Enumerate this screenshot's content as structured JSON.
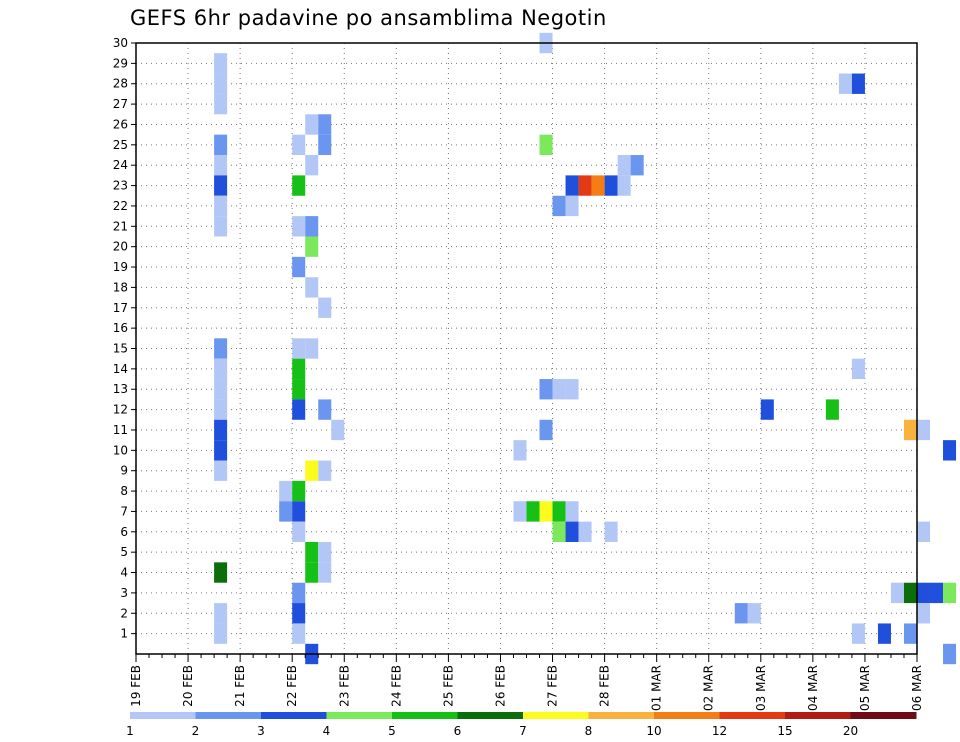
{
  "chart_data": {
    "type": "heatmap",
    "title": "GEFS 6hr padavine po ansamblima Negotin",
    "y_ticks": [
      1,
      2,
      3,
      4,
      5,
      6,
      7,
      8,
      9,
      10,
      11,
      12,
      13,
      14,
      15,
      16,
      17,
      18,
      19,
      20,
      21,
      22,
      23,
      24,
      25,
      26,
      27,
      28,
      29,
      30
    ],
    "x_ticks": [
      "19 FEB",
      "20 FEB",
      "21 FEB",
      "22 FEB",
      "23 FEB",
      "24 FEB",
      "25 FEB",
      "26 FEB",
      "27 FEB",
      "28 FEB",
      "01 MAR",
      "02 MAR",
      "03 MAR",
      "04 MAR",
      "05 MAR",
      "06 MAR"
    ],
    "xlim_days": [
      0,
      15
    ],
    "ylim": [
      0,
      30
    ],
    "legend": {
      "labels": [
        "1",
        "2",
        "3",
        "4",
        "5",
        "6",
        "7",
        "8",
        "10",
        "12",
        "15",
        "20"
      ],
      "colors": [
        "#b3c7f7",
        "#6a96f0",
        "#1f4fdb",
        "#7ce85c",
        "#17c017",
        "#0b6e0b",
        "#fbfb1e",
        "#fbb13d",
        "#f57d17",
        "#e33a14",
        "#b31a14",
        "#6e0b14"
      ]
    },
    "cells": [
      {
        "member": 29,
        "day": 1.5,
        "value": 1
      },
      {
        "member": 28,
        "day": 1.5,
        "value": 1
      },
      {
        "member": 27,
        "day": 1.5,
        "value": 1
      },
      {
        "member": 25,
        "day": 1.5,
        "value": 2
      },
      {
        "member": 24,
        "day": 1.5,
        "value": 1
      },
      {
        "member": 23,
        "day": 1.5,
        "value": 3
      },
      {
        "member": 22,
        "day": 1.5,
        "value": 1
      },
      {
        "member": 21,
        "day": 1.5,
        "value": 1
      },
      {
        "member": 15,
        "day": 1.5,
        "value": 2
      },
      {
        "member": 14,
        "day": 1.5,
        "value": 1
      },
      {
        "member": 13,
        "day": 1.5,
        "value": 1
      },
      {
        "member": 12,
        "day": 1.5,
        "value": 1
      },
      {
        "member": 11,
        "day": 1.5,
        "value": 3
      },
      {
        "member": 10,
        "day": 1.5,
        "value": 3
      },
      {
        "member": 9,
        "day": 1.5,
        "value": 1
      },
      {
        "member": 4,
        "day": 1.5,
        "value": 6
      },
      {
        "member": 2,
        "day": 1.5,
        "value": 1
      },
      {
        "member": 1,
        "day": 1.5,
        "value": 1
      },
      {
        "member": 8,
        "day": 2.75,
        "value": 1
      },
      {
        "member": 7,
        "day": 2.75,
        "value": 2
      },
      {
        "member": 25,
        "day": 3,
        "value": 1
      },
      {
        "member": 23,
        "day": 3,
        "value": 5
      },
      {
        "member": 21,
        "day": 3,
        "value": 1
      },
      {
        "member": 19,
        "day": 3,
        "value": 2
      },
      {
        "member": 15,
        "day": 3,
        "value": 1
      },
      {
        "member": 14,
        "day": 3,
        "value": 5
      },
      {
        "member": 13,
        "day": 3,
        "value": 5
      },
      {
        "member": 12,
        "day": 3,
        "value": 3
      },
      {
        "member": 8,
        "day": 3,
        "value": 5
      },
      {
        "member": 7,
        "day": 3,
        "value": 3
      },
      {
        "member": 6,
        "day": 3,
        "value": 1
      },
      {
        "member": 3,
        "day": 3,
        "value": 2
      },
      {
        "member": 2,
        "day": 3,
        "value": 3
      },
      {
        "member": 1,
        "day": 3,
        "value": 1
      },
      {
        "member": 26,
        "day": 3.25,
        "value": 1
      },
      {
        "member": 24,
        "day": 3.25,
        "value": 1
      },
      {
        "member": 21,
        "day": 3.25,
        "value": 2
      },
      {
        "member": 20,
        "day": 3.25,
        "value": 4
      },
      {
        "member": 18,
        "day": 3.25,
        "value": 1
      },
      {
        "member": 15,
        "day": 3.25,
        "value": 1
      },
      {
        "member": 9,
        "day": 3.25,
        "value": 7
      },
      {
        "member": 5,
        "day": 3.25,
        "value": 5
      },
      {
        "member": 4,
        "day": 3.25,
        "value": 5
      },
      {
        "member": 0,
        "day": 3.25,
        "value": 3
      },
      {
        "member": 26,
        "day": 3.5,
        "value": 2
      },
      {
        "member": 25,
        "day": 3.5,
        "value": 2
      },
      {
        "member": 17,
        "day": 3.5,
        "value": 1
      },
      {
        "member": 12,
        "day": 3.5,
        "value": 2
      },
      {
        "member": 9,
        "day": 3.5,
        "value": 1
      },
      {
        "member": 5,
        "day": 3.5,
        "value": 1
      },
      {
        "member": 4,
        "day": 3.5,
        "value": 1
      },
      {
        "member": 11,
        "day": 3.75,
        "value": 1
      },
      {
        "member": 10,
        "day": 7.25,
        "value": 1
      },
      {
        "member": 7,
        "day": 7.25,
        "value": 1
      },
      {
        "member": 7,
        "day": 7.5,
        "value": 5
      },
      {
        "member": 30,
        "day": 7.75,
        "value": 1
      },
      {
        "member": 25,
        "day": 7.75,
        "value": 4
      },
      {
        "member": 13,
        "day": 7.75,
        "value": 2
      },
      {
        "member": 11,
        "day": 7.75,
        "value": 2
      },
      {
        "member": 7,
        "day": 7.75,
        "value": 7
      },
      {
        "member": 22,
        "day": 8,
        "value": 2
      },
      {
        "member": 13,
        "day": 8,
        "value": 1
      },
      {
        "member": 7,
        "day": 8,
        "value": 5
      },
      {
        "member": 6,
        "day": 8,
        "value": 4
      },
      {
        "member": 23,
        "day": 8.25,
        "value": 3
      },
      {
        "member": 22,
        "day": 8.25,
        "value": 1
      },
      {
        "member": 13,
        "day": 8.25,
        "value": 1
      },
      {
        "member": 7,
        "day": 8.25,
        "value": 1
      },
      {
        "member": 6,
        "day": 8.25,
        "value": 3
      },
      {
        "member": 23,
        "day": 8.5,
        "value": 12
      },
      {
        "member": 6,
        "day": 8.5,
        "value": 1
      },
      {
        "member": 23,
        "day": 8.75,
        "value": 10
      },
      {
        "member": 23,
        "day": 9,
        "value": 3
      },
      {
        "member": 6,
        "day": 9,
        "value": 1
      },
      {
        "member": 24,
        "day": 9.25,
        "value": 1
      },
      {
        "member": 23,
        "day": 9.25,
        "value": 1
      },
      {
        "member": 24,
        "day": 9.5,
        "value": 2
      },
      {
        "member": 2,
        "day": 11.5,
        "value": 2
      },
      {
        "member": 2,
        "day": 11.75,
        "value": 1
      },
      {
        "member": 12,
        "day": 12,
        "value": 3
      },
      {
        "member": 12,
        "day": 13.25,
        "value": 5
      },
      {
        "member": 28,
        "day": 13.5,
        "value": 1
      },
      {
        "member": 28,
        "day": 13.75,
        "value": 3
      },
      {
        "member": 14,
        "day": 13.75,
        "value": 1
      },
      {
        "member": 1,
        "day": 13.75,
        "value": 1
      },
      {
        "member": 1,
        "day": 14.25,
        "value": 3
      },
      {
        "member": 3,
        "day": 14.5,
        "value": 1
      },
      {
        "member": 11,
        "day": 14.75,
        "value": 8
      },
      {
        "member": 3,
        "day": 14.75,
        "value": 6
      },
      {
        "member": 1,
        "day": 14.75,
        "value": 2
      },
      {
        "member": 11,
        "day": 15,
        "value": 1
      },
      {
        "member": 6,
        "day": 15,
        "value": 1
      },
      {
        "member": 3,
        "day": 15,
        "value": 3
      },
      {
        "member": 2,
        "day": 15,
        "value": 1
      },
      {
        "member": 3,
        "day": 15.25,
        "value": 3
      },
      {
        "member": 10,
        "day": 15.5,
        "value": 3
      },
      {
        "member": 3,
        "day": 15.5,
        "value": 4
      },
      {
        "member": 0,
        "day": 15.5,
        "value": 2
      }
    ]
  }
}
